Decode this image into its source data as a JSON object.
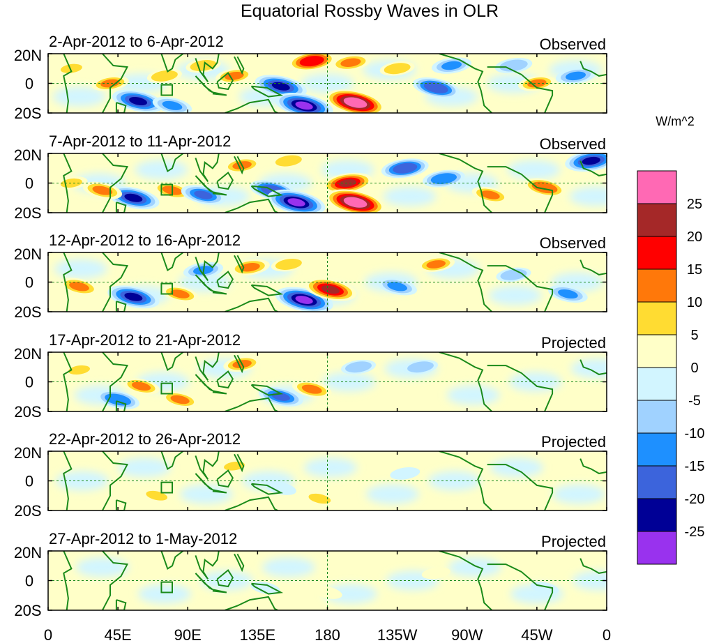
{
  "chart_data": {
    "type": "heatmap",
    "title": "Equatorial Rossby Waves in OLR",
    "units_label": "W/m^2",
    "x_ticks": [
      "0",
      "45E",
      "90E",
      "135E",
      "180",
      "135W",
      "90W",
      "45W",
      "0"
    ],
    "y_ticks": [
      "20N",
      "0",
      "20S"
    ],
    "xlim_degE": [
      0,
      360
    ],
    "ylim_deg": [
      -20,
      20
    ],
    "colorbar": {
      "levels": [
        "-25",
        "-20",
        "-15",
        "-10",
        "-5",
        "0",
        "5",
        "10",
        "15",
        "20",
        "25"
      ],
      "colors": [
        "#9932ee",
        "#000096",
        "#3c64dc",
        "#1e90ff",
        "#a0d2ff",
        "#d2f5ff",
        "#ffffc8",
        "#ffdc32",
        "#ff780a",
        "#ff0000",
        "#a52828",
        "#ff69b4"
      ]
    },
    "panels": [
      {
        "period": "2-Apr-2012 to 6-Apr-2012",
        "status": "Observed",
        "features": [
          {
            "lon": 58,
            "lat": -12,
            "value": -22
          },
          {
            "lon": 40,
            "lat": 0,
            "value": 10
          },
          {
            "lon": 80,
            "lat": -15,
            "value": -12
          },
          {
            "lon": 75,
            "lat": 5,
            "value": 8
          },
          {
            "lon": 100,
            "lat": 12,
            "value": 8
          },
          {
            "lon": 120,
            "lat": 5,
            "value": 10
          },
          {
            "lon": 150,
            "lat": -2,
            "value": -22
          },
          {
            "lon": 165,
            "lat": -15,
            "value": -27
          },
          {
            "lon": 170,
            "lat": 15,
            "value": 18
          },
          {
            "lon": 195,
            "lat": 14,
            "value": 12
          },
          {
            "lon": 198,
            "lat": -13,
            "value": 28
          },
          {
            "lon": 225,
            "lat": 10,
            "value": 8
          },
          {
            "lon": 250,
            "lat": -3,
            "value": -18
          },
          {
            "lon": 260,
            "lat": 12,
            "value": -12
          },
          {
            "lon": 300,
            "lat": 12,
            "value": -10
          },
          {
            "lon": 315,
            "lat": 0,
            "value": 10
          },
          {
            "lon": 340,
            "lat": 5,
            "value": -12
          },
          {
            "lon": 15,
            "lat": 10,
            "value": 6
          }
        ]
      },
      {
        "period": "7-Apr-2012 to 11-Apr-2012",
        "status": "Observed",
        "features": [
          {
            "lon": 55,
            "lat": -10,
            "value": -22
          },
          {
            "lon": 35,
            "lat": -5,
            "value": 12
          },
          {
            "lon": 80,
            "lat": -5,
            "value": 12
          },
          {
            "lon": 100,
            "lat": -8,
            "value": -16
          },
          {
            "lon": 125,
            "lat": 12,
            "value": 10
          },
          {
            "lon": 145,
            "lat": -5,
            "value": -18
          },
          {
            "lon": 160,
            "lat": -13,
            "value": -27
          },
          {
            "lon": 155,
            "lat": 15,
            "value": 8
          },
          {
            "lon": 193,
            "lat": 0,
            "value": 20
          },
          {
            "lon": 198,
            "lat": -13,
            "value": 28
          },
          {
            "lon": 230,
            "lat": 10,
            "value": -18
          },
          {
            "lon": 255,
            "lat": 3,
            "value": -14
          },
          {
            "lon": 285,
            "lat": -8,
            "value": 10
          },
          {
            "lon": 320,
            "lat": -3,
            "value": 14
          },
          {
            "lon": 350,
            "lat": 15,
            "value": -22
          },
          {
            "lon": 15,
            "lat": 0,
            "value": 6
          }
        ]
      },
      {
        "period": "12-Apr-2012 to 16-Apr-2012",
        "status": "Observed",
        "features": [
          {
            "lon": 55,
            "lat": -10,
            "value": -22
          },
          {
            "lon": 20,
            "lat": -3,
            "value": 12
          },
          {
            "lon": 85,
            "lat": -8,
            "value": 10
          },
          {
            "lon": 100,
            "lat": 8,
            "value": -12
          },
          {
            "lon": 130,
            "lat": 10,
            "value": 12
          },
          {
            "lon": 165,
            "lat": -12,
            "value": -27
          },
          {
            "lon": 182,
            "lat": -5,
            "value": 22
          },
          {
            "lon": 155,
            "lat": 12,
            "value": 8
          },
          {
            "lon": 225,
            "lat": -3,
            "value": -12
          },
          {
            "lon": 250,
            "lat": 12,
            "value": 10
          },
          {
            "lon": 300,
            "lat": 5,
            "value": -8
          },
          {
            "lon": 335,
            "lat": -8,
            "value": -12
          }
        ]
      },
      {
        "period": "17-Apr-2012 to 21-Apr-2012",
        "status": "Projected",
        "features": [
          {
            "lon": 45,
            "lat": -12,
            "value": -15
          },
          {
            "lon": 60,
            "lat": -3,
            "value": 10
          },
          {
            "lon": 85,
            "lat": -12,
            "value": 10
          },
          {
            "lon": 125,
            "lat": 12,
            "value": 10
          },
          {
            "lon": 150,
            "lat": -10,
            "value": -16
          },
          {
            "lon": 170,
            "lat": -5,
            "value": 12
          },
          {
            "lon": 200,
            "lat": 10,
            "value": -8
          },
          {
            "lon": 240,
            "lat": 10,
            "value": -8
          },
          {
            "lon": 20,
            "lat": 8,
            "value": 6
          }
        ]
      },
      {
        "period": "22-Apr-2012 to 26-Apr-2012",
        "status": "Projected",
        "features": [
          {
            "lon": 70,
            "lat": -10,
            "value": 6
          },
          {
            "lon": 120,
            "lat": 10,
            "value": 5
          },
          {
            "lon": 175,
            "lat": -12,
            "value": 7
          },
          {
            "lon": 150,
            "lat": -5,
            "value": -5
          },
          {
            "lon": 230,
            "lat": 5,
            "value": -4
          },
          {
            "lon": 300,
            "lat": -5,
            "value": 3
          }
        ]
      },
      {
        "period": "27-Apr-2012 to 1-May-2012",
        "status": "Projected",
        "features": [
          {
            "lon": 70,
            "lat": 5,
            "value": 4
          },
          {
            "lon": 140,
            "lat": -5,
            "value": -4
          },
          {
            "lon": 180,
            "lat": -8,
            "value": 4
          },
          {
            "lon": 250,
            "lat": 5,
            "value": 3
          },
          {
            "lon": 320,
            "lat": -5,
            "value": -3
          }
        ]
      }
    ]
  }
}
